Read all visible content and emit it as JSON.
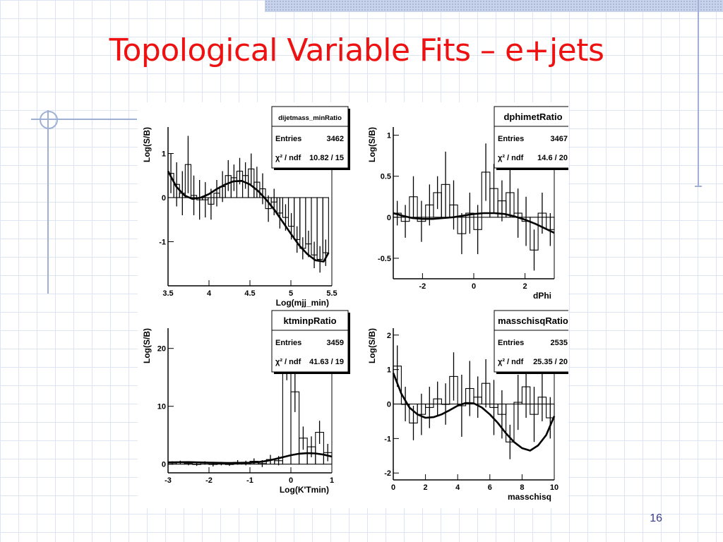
{
  "slide": {
    "title": "Topological Variable Fits – e+jets",
    "page_number": "16"
  },
  "chart_data": [
    {
      "type": "histogram",
      "name": "dijetmass_minRatio",
      "stats": {
        "entries_label": "Entries",
        "entries": "3462",
        "chi_label": "χ² / ndf",
        "chi_value": "10.82 / 15"
      },
      "ylabel": "Log(S/B)",
      "xlabel": "Log(mjj_min)",
      "xlim": [
        3.5,
        5.5
      ],
      "ylim": [
        -2,
        1.6
      ],
      "xticks": [
        3.5,
        4,
        4.5,
        5,
        5.5
      ],
      "yticks": [
        -1,
        0,
        1
      ],
      "edges": [
        3.5,
        3.57,
        3.64,
        3.71,
        3.78,
        3.85,
        3.92,
        3.99,
        4.06,
        4.13,
        4.2,
        4.27,
        4.34,
        4.41,
        4.48,
        4.55,
        4.62,
        4.69,
        4.76,
        4.83,
        4.9,
        4.97,
        5.04,
        5.11,
        5.18,
        5.25,
        5.32,
        5.39,
        5.46
      ],
      "values": [
        0.55,
        0.3,
        0.1,
        0.75,
        0.05,
        -0.05,
        -0.05,
        -0.15,
        0.1,
        0.25,
        0.5,
        0.45,
        0.6,
        0.5,
        0.65,
        0.35,
        0.2,
        -0.25,
        -0.1,
        -0.35,
        -0.45,
        -0.65,
        -0.95,
        -1.15,
        -1.05,
        -1.3,
        -1.4,
        -1.25
      ],
      "errors": [
        0.45,
        0.5,
        0.5,
        0.65,
        0.45,
        0.45,
        0.4,
        0.35,
        0.3,
        0.35,
        0.35,
        0.3,
        0.3,
        0.3,
        0.35,
        0.35,
        0.35,
        0.3,
        0.3,
        0.35,
        0.3,
        0.3,
        0.3,
        0.25,
        0.3,
        0.3,
        0.3,
        0.3
      ],
      "fit": {
        "x": [
          3.5,
          3.6,
          3.7,
          3.8,
          3.9,
          4.0,
          4.1,
          4.2,
          4.3,
          4.4,
          4.5,
          4.6,
          4.7,
          4.8,
          4.9,
          5.0,
          5.1,
          5.2,
          5.3,
          5.4,
          5.46
        ],
        "y": [
          0.6,
          0.25,
          0.05,
          -0.03,
          0.0,
          0.08,
          0.2,
          0.3,
          0.37,
          0.38,
          0.3,
          0.15,
          -0.05,
          -0.28,
          -0.55,
          -0.82,
          -1.08,
          -1.28,
          -1.42,
          -1.45,
          -1.25
        ]
      }
    },
    {
      "type": "histogram",
      "name": "dphimetRatio",
      "stats": {
        "entries_label": "Entries",
        "entries": "3467",
        "chi_label": "χ² / ndf",
        "chi_value": "14.6 / 20"
      },
      "ylabel": "Log(S/B)",
      "xlabel": "dPhi",
      "xlim": [
        -3.14,
        3.14
      ],
      "ylim": [
        -0.75,
        1.1
      ],
      "xticks": [
        -2,
        0,
        2
      ],
      "yticks": [
        -0.5,
        0,
        0.5,
        1
      ],
      "edges": [
        -3.14,
        -2.83,
        -2.51,
        -2.2,
        -1.88,
        -1.57,
        -1.26,
        -0.94,
        -0.63,
        -0.31,
        0.0,
        0.31,
        0.63,
        0.94,
        1.26,
        1.57,
        1.88,
        2.2,
        2.51,
        2.83,
        3.14
      ],
      "values": [
        0.05,
        -0.05,
        0.25,
        -0.05,
        0.15,
        0.3,
        0.4,
        0.15,
        -0.2,
        0.05,
        -0.15,
        0.55,
        0.35,
        0.2,
        0.3,
        0.05,
        -0.05,
        -0.4,
        0.05,
        -0.15
      ],
      "errors": [
        0.15,
        0.2,
        0.25,
        0.25,
        0.25,
        0.2,
        0.4,
        0.3,
        0.25,
        0.25,
        0.3,
        0.35,
        0.3,
        0.25,
        0.3,
        0.3,
        0.3,
        0.25,
        0.25,
        0.2
      ],
      "fit": {
        "x": [
          -3.14,
          -2.8,
          -2.4,
          -2.0,
          -1.6,
          -1.2,
          -0.8,
          -0.4,
          0.0,
          0.4,
          0.8,
          1.2,
          1.6,
          2.0,
          2.4,
          2.8,
          3.14
        ],
        "y": [
          0.05,
          0.02,
          -0.01,
          -0.02,
          -0.02,
          -0.01,
          0.0,
          0.02,
          0.04,
          0.05,
          0.05,
          0.04,
          0.01,
          -0.03,
          -0.08,
          -0.14,
          -0.19
        ]
      }
    },
    {
      "type": "histogram",
      "name": "ktminpRatio",
      "stats": {
        "entries_label": "Entries",
        "entries": "3459",
        "chi_label": "χ² / ndf",
        "chi_value": "41.63 / 19"
      },
      "ylabel": "Log(S/B)",
      "xlabel": "Log(K'Tmin)",
      "xlim": [
        -3,
        1
      ],
      "ylim": [
        -1.5,
        23.5
      ],
      "xticks": [
        -3,
        -2,
        -1,
        0,
        1
      ],
      "yticks": [
        0,
        10,
        20
      ],
      "edges": [
        -3.0,
        -2.8,
        -2.6,
        -2.4,
        -2.2,
        -2.0,
        -1.8,
        -1.6,
        -1.4,
        -1.2,
        -1.0,
        -0.8,
        -0.6,
        -0.4,
        -0.2,
        0.0,
        0.2,
        0.4,
        0.6,
        0.8,
        1.0
      ],
      "values": [
        0.2,
        0.3,
        0.1,
        0.0,
        0.2,
        0.0,
        0.1,
        0.0,
        0.3,
        0.2,
        0.5,
        0.1,
        0.8,
        0.6,
        18.0,
        12.5,
        4.5,
        3.0,
        5.5,
        2.0
      ],
      "errors": [
        0.3,
        0.3,
        0.3,
        0.3,
        0.3,
        0.4,
        0.3,
        0.3,
        0.4,
        0.4,
        0.5,
        0.6,
        0.8,
        0.8,
        3.5,
        3.5,
        2.0,
        1.8,
        2.0,
        1.5
      ],
      "fit": {
        "x": [
          -3.0,
          -2.5,
          -2.0,
          -1.5,
          -1.0,
          -0.8,
          -0.6,
          -0.4,
          -0.2,
          0.0,
          0.2,
          0.4,
          0.6,
          0.8,
          1.0
        ],
        "y": [
          0.3,
          0.35,
          0.25,
          0.2,
          0.25,
          0.35,
          0.55,
          0.85,
          1.2,
          1.55,
          1.8,
          1.9,
          1.85,
          1.65,
          1.3
        ]
      }
    },
    {
      "type": "histogram",
      "name": "masschisqRatio",
      "stats": {
        "entries_label": "Entries",
        "entries": "2535",
        "chi_label": "χ² / ndf",
        "chi_value": "25.35 / 20"
      },
      "ylabel": "Log(S/B)",
      "xlabel": "masschisq",
      "xlim": [
        0,
        10
      ],
      "ylim": [
        -2.2,
        2.2
      ],
      "xticks": [
        0,
        2,
        4,
        6,
        8,
        10
      ],
      "yticks": [
        -2,
        -1,
        0,
        1,
        2
      ],
      "edges": [
        0.0,
        0.5,
        1.0,
        1.5,
        2.0,
        2.5,
        3.0,
        3.5,
        4.0,
        4.5,
        5.0,
        5.5,
        6.0,
        6.5,
        7.0,
        7.5,
        8.0,
        8.5,
        9.0,
        9.5,
        10.0
      ],
      "values": [
        1.1,
        0.0,
        -0.55,
        -0.3,
        -0.1,
        0.15,
        0.0,
        0.8,
        -0.05,
        0.45,
        0.2,
        0.6,
        -0.1,
        -0.3,
        -1.1,
        0.05,
        0.5,
        -0.3,
        0.2,
        -0.4
      ],
      "errors": [
        0.6,
        0.5,
        0.5,
        0.6,
        0.6,
        0.5,
        0.6,
        0.7,
        0.9,
        0.8,
        0.6,
        0.7,
        0.8,
        0.7,
        0.5,
        0.8,
        0.9,
        0.8,
        0.7,
        0.6
      ],
      "fit": {
        "x": [
          0.0,
          0.5,
          1.0,
          1.5,
          2.0,
          2.5,
          3.0,
          3.5,
          4.0,
          4.5,
          5.0,
          5.5,
          6.0,
          6.5,
          7.0,
          7.5,
          8.0,
          8.5,
          9.0,
          9.5,
          10.0
        ],
        "y": [
          0.9,
          0.3,
          -0.1,
          -0.3,
          -0.4,
          -0.38,
          -0.3,
          -0.18,
          -0.05,
          0.03,
          0.02,
          -0.1,
          -0.3,
          -0.55,
          -0.85,
          -1.1,
          -1.28,
          -1.35,
          -1.2,
          -0.9,
          -0.35
        ]
      }
    }
  ]
}
